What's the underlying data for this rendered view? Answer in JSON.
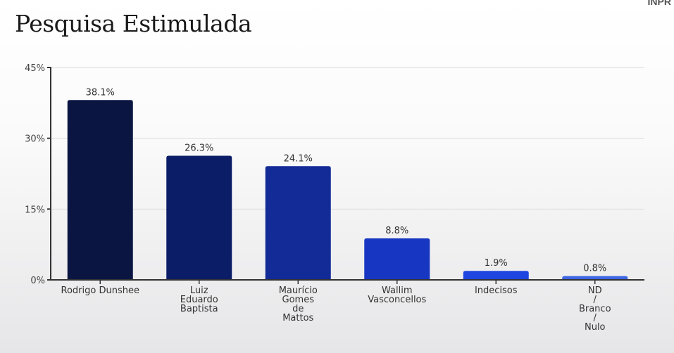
{
  "title": "Pesquisa Estimulada",
  "logo_text": "INPR",
  "chart_data": {
    "type": "bar",
    "title": "Pesquisa Estimulada",
    "categories": [
      [
        "Rodrigo Dunshee"
      ],
      [
        "Luiz",
        "Eduardo",
        "Baptista"
      ],
      [
        "Maurício",
        "Gomes",
        "de",
        "Mattos"
      ],
      [
        "Wallim",
        "Vasconcellos"
      ],
      [
        "Indecisos"
      ],
      [
        "ND",
        "/",
        "Branco",
        "/",
        "Nulo"
      ]
    ],
    "values": [
      38.1,
      26.3,
      24.1,
      8.8,
      1.9,
      0.8
    ],
    "data_labels": [
      "38.1%",
      "26.3%",
      "24.1%",
      "8.8%",
      "1.9%",
      "0.8%"
    ],
    "colors": [
      "#0a1542",
      "#0c1d68",
      "#122b96",
      "#1737c2",
      "#1e45e0",
      "#3d66e3"
    ],
    "ylim": [
      0,
      45
    ],
    "yticks": [
      0,
      15,
      30,
      45
    ],
    "ytick_labels": [
      "0%",
      "15%",
      "30%",
      "45%"
    ],
    "grid": true,
    "xlabel": "",
    "ylabel": ""
  }
}
